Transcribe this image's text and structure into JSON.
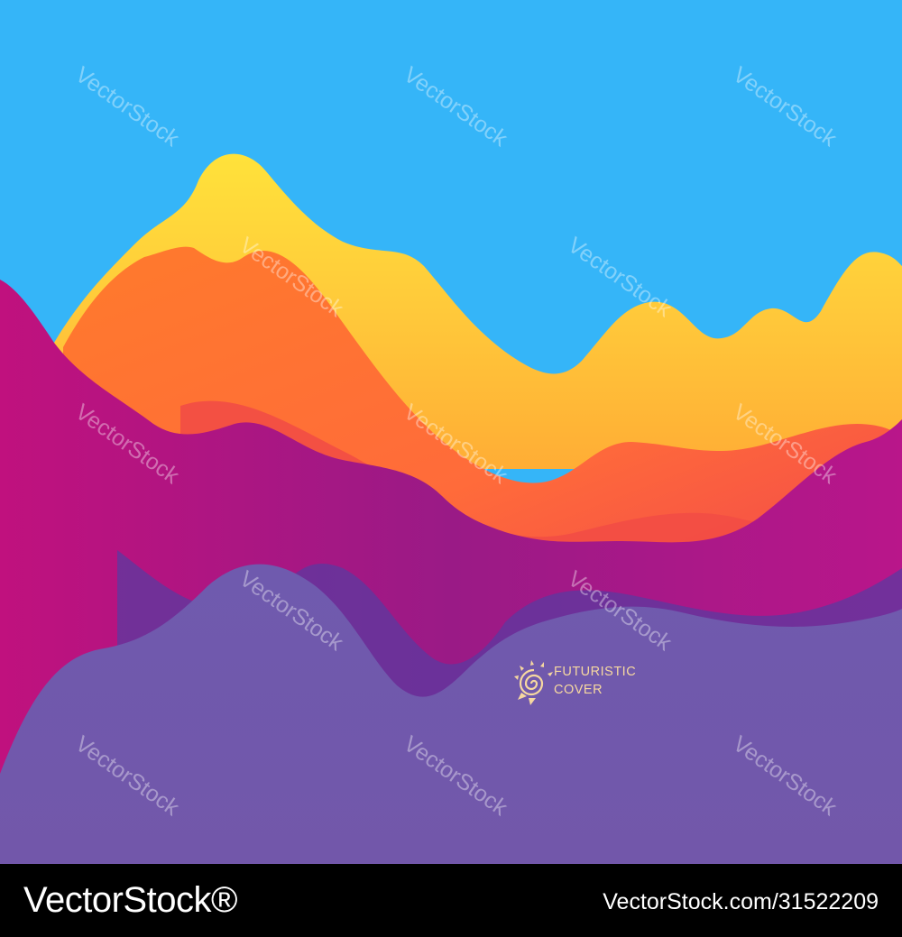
{
  "image": {
    "title_line_1": "FUTURISTIC",
    "title_line_2": "COVER",
    "watermark": "VectorStock"
  },
  "footer": {
    "brand": "VectorStock®",
    "image_id": "VectorStock.com/31522209"
  },
  "colors": {
    "sky": "#35b5f8",
    "yellow": "#ffd838",
    "orange": "#ff8a2a",
    "magenta": "#c0137e",
    "purple": "#7057ab",
    "text_accent": "#f6d8a0"
  }
}
